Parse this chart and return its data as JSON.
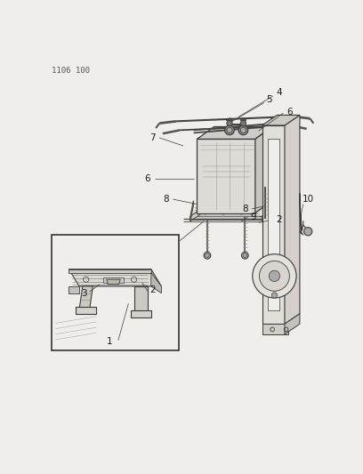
{
  "title_code": "1106 100",
  "bg_color": "#f0eeea",
  "line_color": "#3a3a3a",
  "label_color": "#1a1a1a",
  "title_fontsize": 6.5,
  "label_fontsize": 7.5,
  "fig_w": 4.08,
  "fig_h": 5.33,
  "dpi": 100
}
